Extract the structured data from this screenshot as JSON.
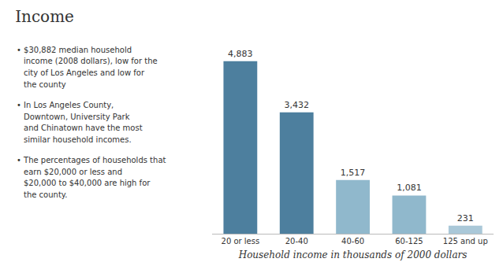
{
  "chart_data": {
    "type": "bar",
    "title": "Income",
    "categories": [
      "20 or less",
      "20-40",
      "40-60",
      "60-125",
      "125 and up"
    ],
    "values": [
      4883,
      3432,
      1517,
      1081,
      231
    ],
    "value_labels": [
      "4,883",
      "3,432",
      "1,517",
      "1,081",
      "231"
    ],
    "data_labels": true,
    "colors": [
      "#4d7f9e",
      "#4d7f9e",
      "#90b8cc",
      "#90b8cc",
      "#aac8d8"
    ],
    "xlabel": "Household income in thousands of 2000 dollars",
    "ylim": [
      0,
      5500
    ],
    "grid": false,
    "tick_labels": "x",
    "annotations": [
      [
        "• $30,882 median household",
        "income (2008 dollars), low for the",
        "city of Los Angeles and low for",
        "the county"
      ],
      [
        "• In Los Angeles County,",
        "Downtown, University Park",
        "and Chinatown have the most",
        "similar household incomes."
      ],
      [
        "• The percentages of households that",
        "earn $20,000 or less and",
        "$20,000 to $40,000 are high for",
        "the county."
      ]
    ]
  }
}
